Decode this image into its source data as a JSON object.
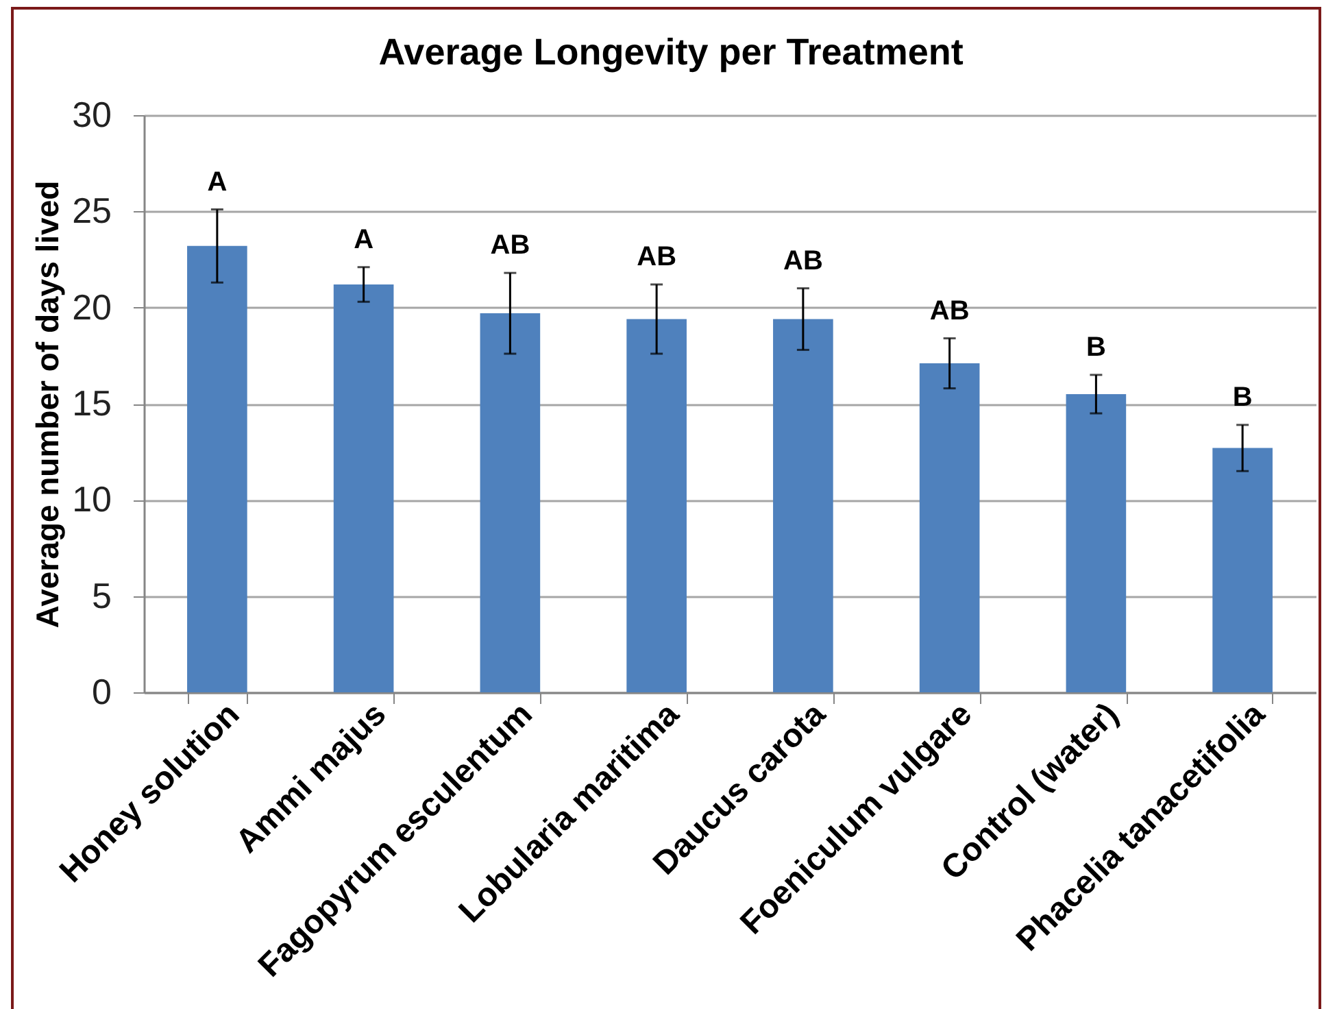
{
  "chart_data": {
    "type": "bar",
    "title": "Average Longevity per Treatment",
    "ylabel": "Average number of days lived",
    "categories": [
      "Honey solution",
      "Ammi majus",
      "Fagopyrum esculentum",
      "Lobularia maritima",
      "Daucus carota",
      "Foeniculum vulgare",
      "Control (water)",
      "Phacelia tanacetifolia"
    ],
    "values": [
      23.2,
      21.2,
      19.7,
      19.4,
      19.4,
      17.1,
      15.5,
      12.7
    ],
    "errors": [
      1.9,
      0.9,
      2.1,
      1.8,
      1.6,
      1.3,
      1.0,
      1.2
    ],
    "color": "#4f81bd",
    "ylim": [
      0,
      30
    ],
    "yticks": [
      0,
      5,
      10,
      15,
      20,
      25,
      30
    ],
    "grid": "y",
    "annotations": [
      "A",
      "A",
      "AB",
      "AB",
      "AB",
      "AB",
      "B",
      "B"
    ]
  }
}
